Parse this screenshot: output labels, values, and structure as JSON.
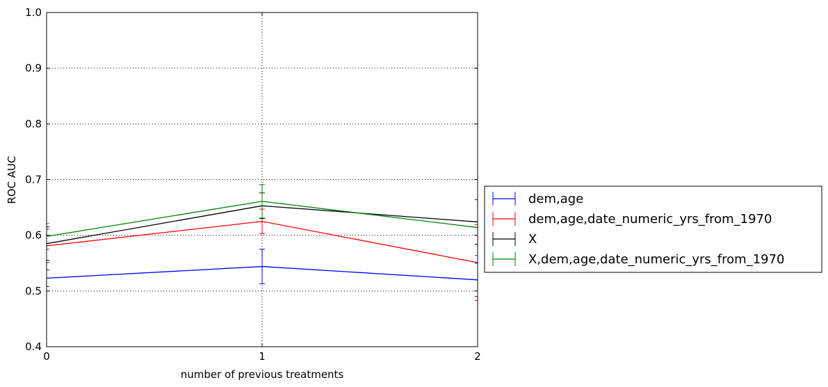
{
  "chart_data": {
    "type": "line",
    "xlabel": "number of previous treatments",
    "ylabel": "ROC AUC",
    "x": [
      0,
      1,
      2
    ],
    "xticks": [
      "0",
      "1",
      "2"
    ],
    "yticks": [
      "0.4",
      "0.5",
      "0.6",
      "0.7",
      "0.8",
      "0.9",
      "1.0"
    ],
    "xlim": [
      0,
      2
    ],
    "ylim": [
      0.4,
      1.0
    ],
    "grid": true,
    "legend_position": "right",
    "series": [
      {
        "name": "dem,age",
        "color": "#0000ff",
        "values": [
          0.523,
          0.544,
          0.52
        ],
        "errors": [
          0.015,
          0.031,
          0.03
        ]
      },
      {
        "name": "dem,age,date_numeric_yrs_from_1970",
        "color": "#ff0000",
        "values": [
          0.581,
          0.625,
          0.551
        ],
        "errors": [
          0.03,
          0.022,
          0.068
        ]
      },
      {
        "name": "X",
        "color": "#000000",
        "values": [
          0.585,
          0.653,
          0.624
        ],
        "errors": [
          0.03,
          0.023,
          0.04
        ]
      },
      {
        "name": "X,dem,age,date_numeric_yrs_from_1970",
        "color": "#008000",
        "values": [
          0.598,
          0.661,
          0.614
        ],
        "errors": [
          0.023,
          0.03,
          0.05
        ]
      }
    ]
  }
}
